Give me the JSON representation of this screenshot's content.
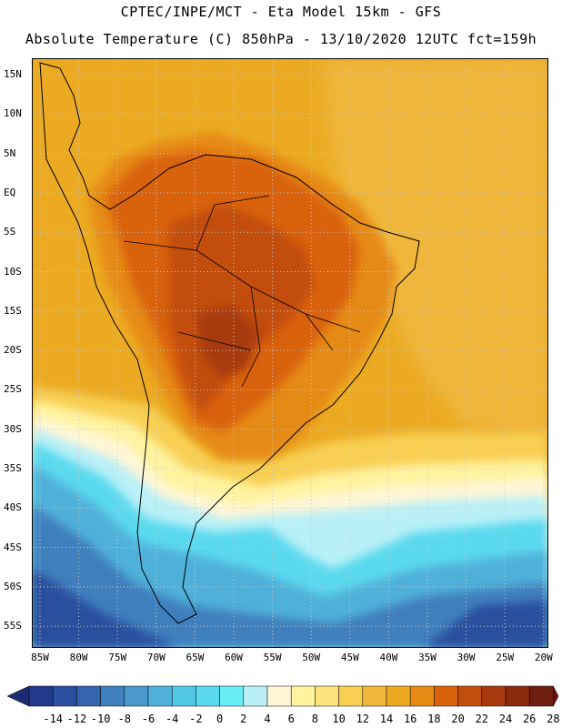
{
  "header": {
    "line1": "CPTEC/INPE/MCT -  Eta Model 15km - GFS",
    "line2": "Absolute Temperature (C) 850hPa - 13/10/2020 12UTC fct=159h"
  },
  "axes": {
    "lat_labels": [
      "15N",
      "10N",
      "5N",
      "EQ",
      "5S",
      "10S",
      "15S",
      "20S",
      "25S",
      "30S",
      "35S",
      "40S",
      "45S",
      "50S",
      "55S"
    ],
    "lon_labels": [
      "85W",
      "80W",
      "75W",
      "70W",
      "65W",
      "60W",
      "55W",
      "50W",
      "45W",
      "40W",
      "35W",
      "30W",
      "25W",
      "20W"
    ]
  },
  "colorbar": {
    "labels": [
      "-14",
      "-12",
      "-10",
      "-8",
      "-6",
      "-4",
      "-2",
      "0",
      "2",
      "4",
      "6",
      "8",
      "10",
      "12",
      "14",
      "16",
      "18",
      "20",
      "22",
      "24",
      "26",
      "28"
    ],
    "colors": [
      "#223a8c",
      "#2a4f9f",
      "#3566ad",
      "#3f7fbe",
      "#4a98cc",
      "#4fb1da",
      "#50c8e6",
      "#5ad9ee",
      "#6aeef6",
      "#b9f0f7",
      "#fff6d6",
      "#fff3a0",
      "#fce27a",
      "#f8cf52",
      "#f1b73a",
      "#ebaa22",
      "#e68a14",
      "#d9620c",
      "#c24d0c",
      "#a83a0d",
      "#8c2a0e",
      "#6f1f10"
    ],
    "under_color": "#1b2d74",
    "over_color": "#6a0f1a"
  }
}
